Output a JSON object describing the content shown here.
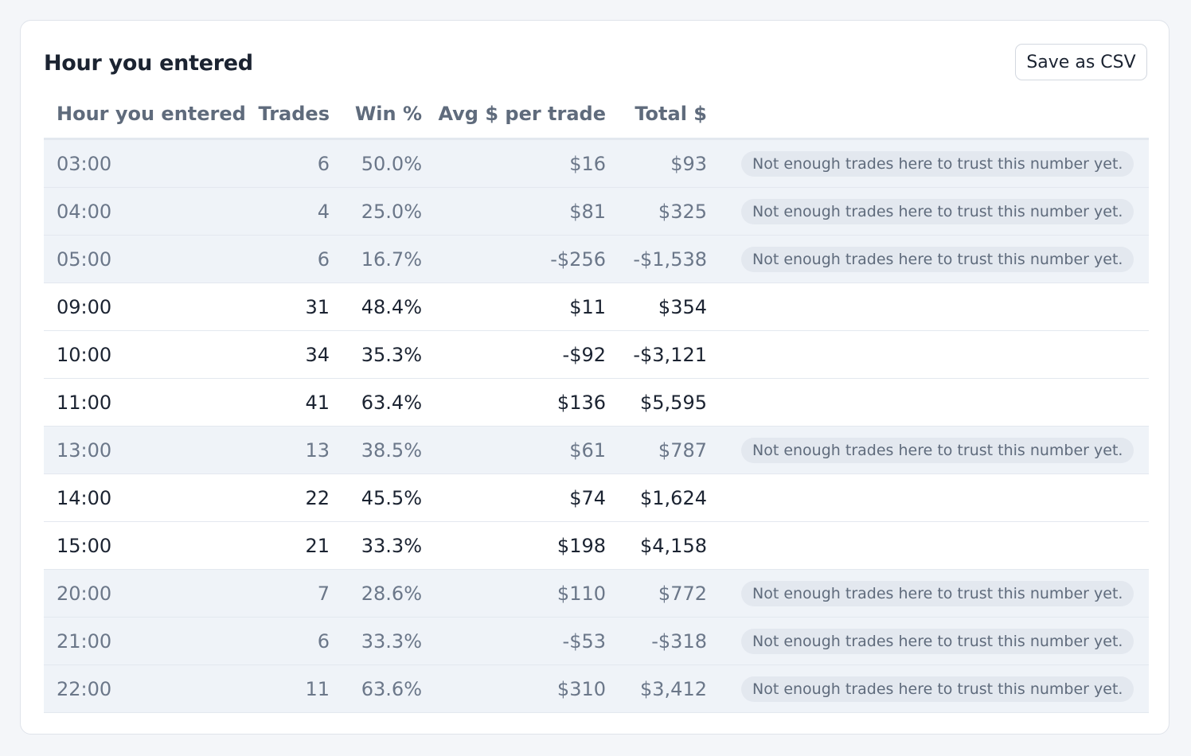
{
  "card": {
    "title": "Hour you entered",
    "save_button": "Save as CSV"
  },
  "table": {
    "columns": [
      "Hour you entered",
      "Trades",
      "Win %",
      "Avg $ per trade",
      "Total $"
    ],
    "rows": [
      {
        "hour": "03:00",
        "trades": "6",
        "win": "50.0%",
        "avg": "$16",
        "total": "$93",
        "note": "Not enough trades here to trust this number yet."
      },
      {
        "hour": "04:00",
        "trades": "4",
        "win": "25.0%",
        "avg": "$81",
        "total": "$325",
        "note": "Not enough trades here to trust this number yet."
      },
      {
        "hour": "05:00",
        "trades": "6",
        "win": "16.7%",
        "avg": "-$256",
        "total": "-$1,538",
        "note": "Not enough trades here to trust this number yet."
      },
      {
        "hour": "09:00",
        "trades": "31",
        "win": "48.4%",
        "avg": "$11",
        "total": "$354",
        "note": ""
      },
      {
        "hour": "10:00",
        "trades": "34",
        "win": "35.3%",
        "avg": "-$92",
        "total": "-$3,121",
        "note": ""
      },
      {
        "hour": "11:00",
        "trades": "41",
        "win": "63.4%",
        "avg": "$136",
        "total": "$5,595",
        "note": ""
      },
      {
        "hour": "13:00",
        "trades": "13",
        "win": "38.5%",
        "avg": "$61",
        "total": "$787",
        "note": "Not enough trades here to trust this number yet."
      },
      {
        "hour": "14:00",
        "trades": "22",
        "win": "45.5%",
        "avg": "$74",
        "total": "$1,624",
        "note": ""
      },
      {
        "hour": "15:00",
        "trades": "21",
        "win": "33.3%",
        "avg": "$198",
        "total": "$4,158",
        "note": ""
      },
      {
        "hour": "20:00",
        "trades": "7",
        "win": "28.6%",
        "avg": "$110",
        "total": "$772",
        "note": "Not enough trades here to trust this number yet."
      },
      {
        "hour": "21:00",
        "trades": "6",
        "win": "33.3%",
        "avg": "-$53",
        "total": "-$318",
        "note": "Not enough trades here to trust this number yet."
      },
      {
        "hour": "22:00",
        "trades": "11",
        "win": "63.6%",
        "avg": "$310",
        "total": "$3,412",
        "note": "Not enough trades here to trust this number yet."
      }
    ]
  }
}
